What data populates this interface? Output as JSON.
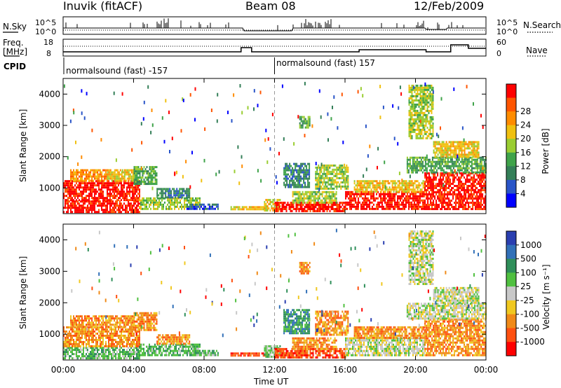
{
  "header": {
    "station": "Inuvik (fitACF)",
    "beam": "Beam 08",
    "date": "12/Feb/2009"
  },
  "top_panel": {
    "left_label": "N.Sky",
    "right_label": "N.Search",
    "left_ticks": [
      "10^5",
      "10^0"
    ],
    "right_ticks": [
      "10^5",
      "10^0"
    ]
  },
  "freq_panel": {
    "left_label_1": "Freq.",
    "left_label_2": "[MHz]",
    "right_label": "Nave",
    "left_ticks": [
      "18",
      "8"
    ],
    "right_ticks": [
      "60",
      "0"
    ]
  },
  "cpid": {
    "label": "CPID",
    "segments": [
      {
        "start_hour": 0,
        "text": "normalsound (fast) -157"
      },
      {
        "start_hour": 12,
        "text": "normalsound (fast) 157"
      }
    ]
  },
  "xaxis": {
    "label": "Time UT",
    "ticks": [
      "00:00",
      "04:00",
      "08:00",
      "12:00",
      "16:00",
      "20:00",
      "00:00"
    ],
    "tick_hours": [
      0,
      4,
      8,
      12,
      16,
      20,
      24
    ]
  },
  "colors": {
    "power": [
      "#0000ff",
      "#2a55c8",
      "#347f58",
      "#3fa34a",
      "#9acd32",
      "#f0c010",
      "#ff8c00",
      "#ff5500",
      "#ff0000"
    ],
    "velocity": [
      "#2a3fb0",
      "#3170b8",
      "#2f8f5a",
      "#50c040",
      "#c8c8c8",
      "#f0c820",
      "#f08a18",
      "#ff5010",
      "#ff0000"
    ]
  },
  "chart_data": [
    {
      "type": "heatmap",
      "name": "power",
      "ylabel": "Slant Range [km]",
      "xlabel": "Time UT",
      "ylim": [
        180,
        4500
      ],
      "xlim": [
        0,
        24
      ],
      "yticks": [
        1000,
        2000,
        3000,
        4000
      ],
      "colorbar_label": "Power [dB]",
      "colorbar_ticks": [
        "4",
        "8",
        "12",
        "16",
        "20",
        "24",
        "28"
      ],
      "colorbar_range": [
        0,
        30
      ],
      "regions": [
        {
          "t0": 0.0,
          "t1": 4.3,
          "r0": 230,
          "r1": 600,
          "c": 8
        },
        {
          "t0": 0.0,
          "t1": 4.3,
          "r0": 600,
          "r1": 1250,
          "c": 8
        },
        {
          "t0": 0.4,
          "t1": 2.5,
          "r0": 1250,
          "r1": 1600,
          "c": 6
        },
        {
          "t0": 2.5,
          "t1": 4.0,
          "r0": 1250,
          "r1": 1600,
          "c": 5
        },
        {
          "t0": 4.0,
          "t1": 5.3,
          "r0": 1100,
          "r1": 1700,
          "c": 3
        },
        {
          "t0": 4.3,
          "t1": 7.8,
          "r0": 330,
          "r1": 700,
          "c": 4
        },
        {
          "t0": 5.3,
          "t1": 7.2,
          "r0": 700,
          "r1": 1000,
          "c": 2
        },
        {
          "t0": 7.0,
          "t1": 8.8,
          "r0": 300,
          "r1": 500,
          "c": 1
        },
        {
          "t0": 9.5,
          "t1": 11.6,
          "r0": 300,
          "r1": 420,
          "c": 5
        },
        {
          "t0": 11.4,
          "t1": 12.3,
          "r0": 300,
          "r1": 650,
          "c": 5
        },
        {
          "t0": 12.0,
          "t1": 16.0,
          "r0": 280,
          "r1": 560,
          "c": 8
        },
        {
          "t0": 13.0,
          "t1": 15.5,
          "r0": 560,
          "r1": 900,
          "c": 4
        },
        {
          "t0": 12.5,
          "t1": 14.0,
          "r0": 1000,
          "r1": 1800,
          "c": 2
        },
        {
          "t0": 14.3,
          "t1": 16.2,
          "r0": 1000,
          "r1": 1750,
          "c": 4
        },
        {
          "t0": 13.4,
          "t1": 14.0,
          "r0": 2900,
          "r1": 3300,
          "c": 3
        },
        {
          "t0": 16.0,
          "t1": 20.5,
          "r0": 300,
          "r1": 900,
          "c": 8
        },
        {
          "t0": 16.5,
          "t1": 20.5,
          "r0": 900,
          "r1": 1250,
          "c": 5
        },
        {
          "t0": 20.5,
          "t1": 24.0,
          "r0": 300,
          "r1": 1500,
          "c": 8
        },
        {
          "t0": 19.5,
          "t1": 24.0,
          "r0": 1500,
          "r1": 2000,
          "c": 3
        },
        {
          "t0": 21.0,
          "t1": 23.6,
          "r0": 2000,
          "r1": 2500,
          "c": 5
        },
        {
          "t0": 19.6,
          "t1": 21.0,
          "r0": 2600,
          "r1": 4300,
          "c": 4
        }
      ]
    },
    {
      "type": "heatmap",
      "name": "velocity",
      "ylabel": "Slant Range [km]",
      "xlabel": "Time UT",
      "ylim": [
        180,
        4500
      ],
      "xlim": [
        0,
        24
      ],
      "yticks": [
        1000,
        2000,
        3000,
        4000
      ],
      "colorbar_label": "Velocity [m s⁻¹]",
      "colorbar_ticks": [
        "1000",
        "500",
        "100",
        "25",
        "-25",
        "-100",
        "-500",
        "-1000"
      ],
      "regions": [
        {
          "t0": 0.0,
          "t1": 4.3,
          "r0": 230,
          "r1": 600,
          "c": 3
        },
        {
          "t0": 0.0,
          "t1": 4.3,
          "r0": 600,
          "r1": 1250,
          "c": 6
        },
        {
          "t0": 0.4,
          "t1": 4.0,
          "r0": 1250,
          "r1": 1600,
          "c": 6
        },
        {
          "t0": 4.0,
          "t1": 5.3,
          "r0": 1100,
          "r1": 1700,
          "c": 6
        },
        {
          "t0": 4.3,
          "t1": 7.8,
          "r0": 330,
          "r1": 700,
          "c": 3
        },
        {
          "t0": 5.3,
          "t1": 7.2,
          "r0": 700,
          "r1": 1000,
          "c": 6
        },
        {
          "t0": 7.0,
          "t1": 8.8,
          "r0": 300,
          "r1": 500,
          "c": 3
        },
        {
          "t0": 9.5,
          "t1": 11.6,
          "r0": 300,
          "r1": 420,
          "c": 7
        },
        {
          "t0": 11.4,
          "t1": 12.3,
          "r0": 300,
          "r1": 650,
          "c": 3
        },
        {
          "t0": 12.0,
          "t1": 16.0,
          "r0": 280,
          "r1": 560,
          "c": 7
        },
        {
          "t0": 13.0,
          "t1": 15.5,
          "r0": 560,
          "r1": 900,
          "c": 6
        },
        {
          "t0": 12.5,
          "t1": 14.0,
          "r0": 1000,
          "r1": 1800,
          "c": 2
        },
        {
          "t0": 14.3,
          "t1": 16.2,
          "r0": 1000,
          "r1": 1750,
          "c": 6
        },
        {
          "t0": 13.4,
          "t1": 14.0,
          "r0": 2900,
          "r1": 3300,
          "c": 6
        },
        {
          "t0": 16.0,
          "t1": 20.5,
          "r0": 300,
          "r1": 900,
          "c": 4
        },
        {
          "t0": 16.5,
          "t1": 20.5,
          "r0": 900,
          "r1": 1250,
          "c": 6
        },
        {
          "t0": 20.5,
          "t1": 24.0,
          "r0": 300,
          "r1": 1500,
          "c": 6
        },
        {
          "t0": 19.5,
          "t1": 24.0,
          "r0": 1500,
          "r1": 2000,
          "c": 4
        },
        {
          "t0": 21.0,
          "t1": 23.6,
          "r0": 2000,
          "r1": 2500,
          "c": 4
        },
        {
          "t0": 19.6,
          "t1": 21.0,
          "r0": 2600,
          "r1": 4300,
          "c": 4
        }
      ]
    }
  ]
}
